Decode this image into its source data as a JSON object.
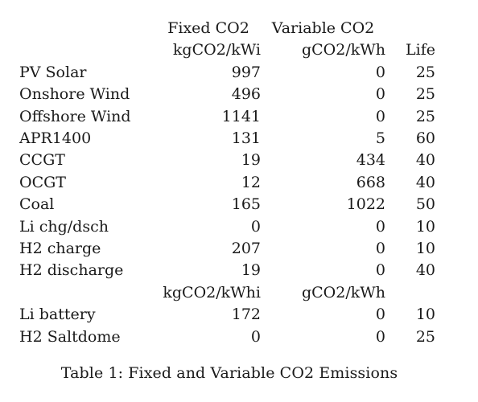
{
  "table": {
    "header": {
      "fixed_title": "Fixed CO2",
      "variable_title": "Variable CO2",
      "fixed_unit": "kgCO2/kWi",
      "variable_unit": "gCO2/kWh",
      "life_title": "Life"
    },
    "rows": [
      {
        "name": "PV Solar",
        "fixed": "997",
        "variable": "0",
        "life": "25"
      },
      {
        "name": "Onshore Wind",
        "fixed": "496",
        "variable": "0",
        "life": "25"
      },
      {
        "name": "Offshore Wind",
        "fixed": "1141",
        "variable": "0",
        "life": "25"
      },
      {
        "name": "APR1400",
        "fixed": "131",
        "variable": "5",
        "life": "60"
      },
      {
        "name": "CCGT",
        "fixed": "19",
        "variable": "434",
        "life": "40"
      },
      {
        "name": "OCGT",
        "fixed": "12",
        "variable": "668",
        "life": "40"
      },
      {
        "name": "Coal",
        "fixed": "165",
        "variable": "1022",
        "life": "50"
      },
      {
        "name": "Li chg/dsch",
        "fixed": "0",
        "variable": "0",
        "life": "10"
      },
      {
        "name": "H2 charge",
        "fixed": "207",
        "variable": "0",
        "life": "10"
      },
      {
        "name": "H2 discharge",
        "fixed": "19",
        "variable": "0",
        "life": "40"
      }
    ],
    "subheader": {
      "fixed_unit": "kgCO2/kWhi",
      "variable_unit": "gCO2/kWh"
    },
    "storage_rows": [
      {
        "name": "Li battery",
        "fixed": "172",
        "variable": "0",
        "life": "10"
      },
      {
        "name": "H2 Saltdome",
        "fixed": "0",
        "variable": "0",
        "life": "25"
      }
    ]
  },
  "caption": "Table 1: Fixed and Variable CO2 Emissions"
}
